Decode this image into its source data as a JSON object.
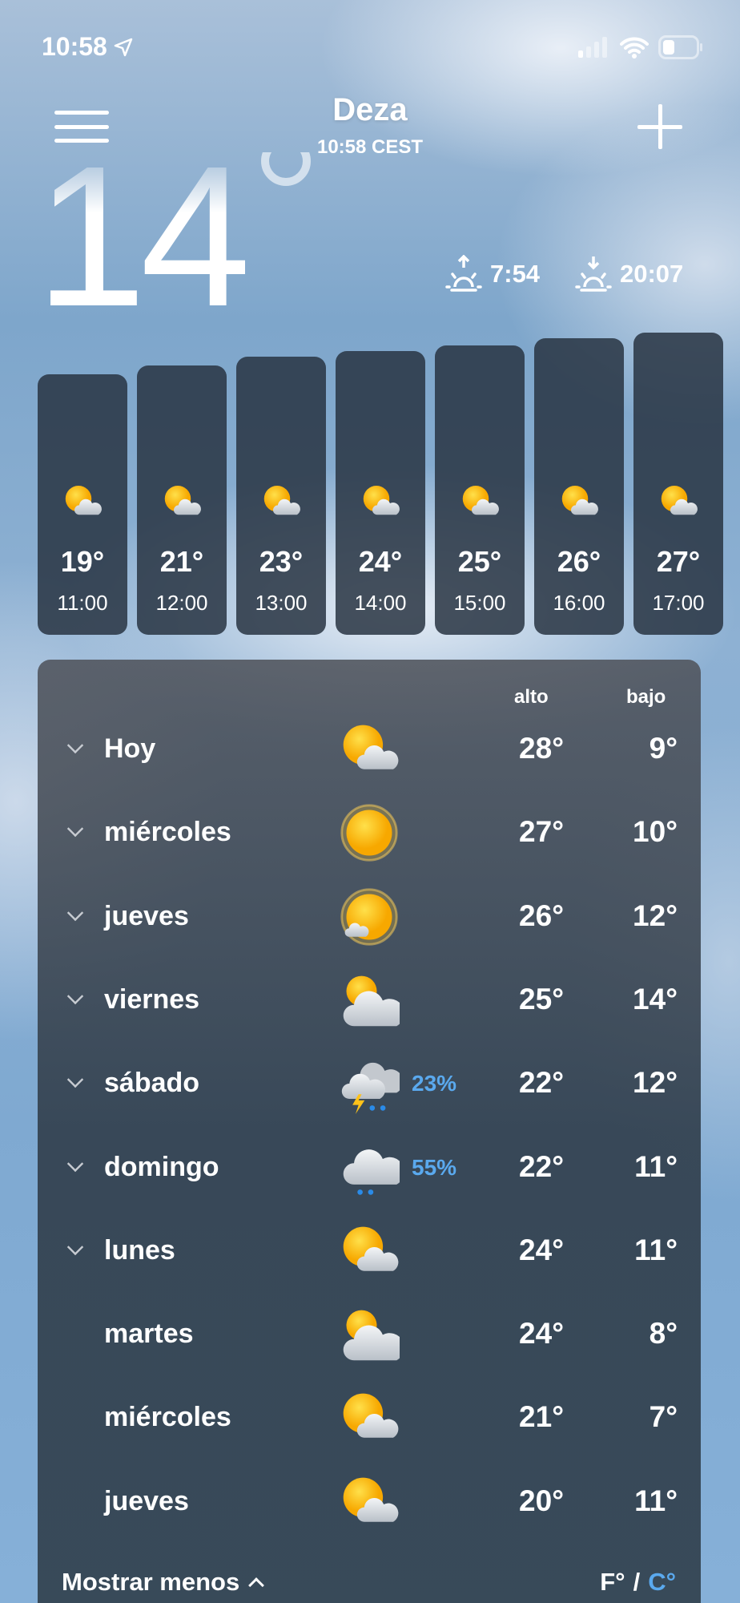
{
  "status_bar": {
    "time": "10:58",
    "location_icon": "location-arrow-icon",
    "signal_icon": "cellular-signal-icon",
    "wifi_icon": "wifi-icon",
    "battery_icon": "battery-icon"
  },
  "header": {
    "city": "Deza",
    "local_time": "10:58 CEST",
    "menu_icon": "hamburger-menu-icon",
    "add_icon": "plus-icon"
  },
  "current": {
    "temperature": "14",
    "sunrise": "7:54",
    "sunset": "20:07"
  },
  "hourly": [
    {
      "temp": "19°",
      "time": "11:00",
      "icon": "partly-cloudy"
    },
    {
      "temp": "21°",
      "time": "12:00",
      "icon": "partly-cloudy"
    },
    {
      "temp": "23°",
      "time": "13:00",
      "icon": "partly-cloudy"
    },
    {
      "temp": "24°",
      "time": "14:00",
      "icon": "partly-cloudy"
    },
    {
      "temp": "25°",
      "time": "15:00",
      "icon": "partly-cloudy"
    },
    {
      "temp": "26°",
      "time": "16:00",
      "icon": "partly-cloudy"
    },
    {
      "temp": "27°",
      "time": "17:00",
      "icon": "partly-cloudy"
    }
  ],
  "daily": {
    "high_label": "alto",
    "low_label": "bajo",
    "days": [
      {
        "day": "Hoy",
        "icon": "partly-cloudy",
        "precip": "",
        "high": "28°",
        "low": "9°",
        "expandable": true
      },
      {
        "day": "miércoles",
        "icon": "sunny",
        "precip": "",
        "high": "27°",
        "low": "10°",
        "expandable": true
      },
      {
        "day": "jueves",
        "icon": "sunny-small-cloud",
        "precip": "",
        "high": "26°",
        "low": "12°",
        "expandable": true
      },
      {
        "day": "viernes",
        "icon": "mostly-cloudy",
        "precip": "",
        "high": "25°",
        "low": "14°",
        "expandable": true
      },
      {
        "day": "sábado",
        "icon": "thunderstorm",
        "precip": "23%",
        "high": "22°",
        "low": "12°",
        "expandable": true
      },
      {
        "day": "domingo",
        "icon": "rain",
        "precip": "55%",
        "high": "22°",
        "low": "11°",
        "expandable": true
      },
      {
        "day": "lunes",
        "icon": "partly-cloudy",
        "precip": "",
        "high": "24°",
        "low": "11°",
        "expandable": true
      },
      {
        "day": "martes",
        "icon": "mostly-cloudy",
        "precip": "",
        "high": "24°",
        "low": "8°",
        "expandable": false
      },
      {
        "day": "miércoles",
        "icon": "partly-cloudy",
        "precip": "",
        "high": "21°",
        "low": "7°",
        "expandable": false
      },
      {
        "day": "jueves",
        "icon": "partly-cloudy",
        "precip": "",
        "high": "20°",
        "low": "11°",
        "expandable": false
      }
    ],
    "show_less": "Mostrar menos",
    "unit_f": "F°",
    "unit_sep": "/",
    "unit_c": "C°"
  },
  "colors": {
    "accent": "#5aa9ee",
    "sun": "#ffc21a"
  }
}
